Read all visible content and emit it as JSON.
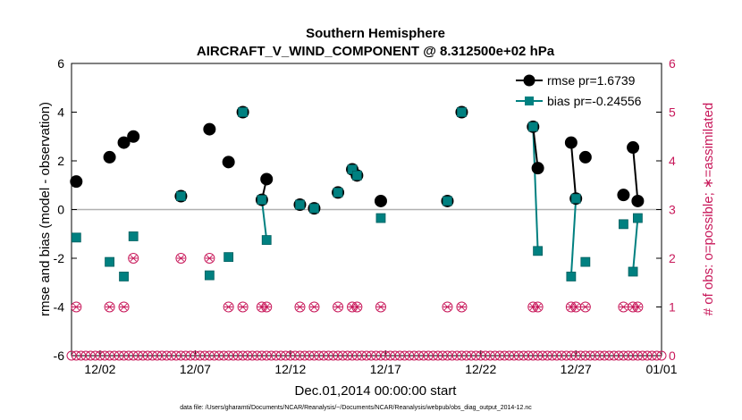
{
  "chart_data": {
    "type": "line",
    "title_line1": "Southern Hemisphere",
    "title_line2": "AIRCRAFT_V_WIND_COMPONENT @ 8.312500e+02 hPa",
    "xlabel": "Dec.01,2014 00:00:00 start",
    "ylabel": "rmse and bias (model - observation)",
    "y2label": "# of obs: o=possible; ∗=assimilated",
    "footnote": "data file: /Users/gharamti/Documents/NCAR/Reanalysis/~/Documents/NCAR/Reanalysis/webpub/obs_diag_output_2014-12.nc",
    "xlim": [
      0.0,
      31.0
    ],
    "ylim": [
      -6,
      6
    ],
    "y2lim": [
      0,
      6
    ],
    "xticks": [
      {
        "x": 1.5,
        "label": "12/02"
      },
      {
        "x": 6.5,
        "label": "12/07"
      },
      {
        "x": 11.5,
        "label": "12/12"
      },
      {
        "x": 16.5,
        "label": "12/17"
      },
      {
        "x": 21.5,
        "label": "12/22"
      },
      {
        "x": 26.5,
        "label": "12/27"
      },
      {
        "x": 31.0,
        "label": "01/01"
      }
    ],
    "yticks": [
      "-6",
      "-4",
      "-2",
      "0",
      "2",
      "4",
      "6"
    ],
    "y2ticks": [
      "0",
      "1",
      "2",
      "3",
      "4",
      "5",
      "6"
    ],
    "legend": [
      {
        "name": "rmse pr=1.6739",
        "color": "#000000",
        "marker": "circle"
      },
      {
        "name": "bias pr=-0.24556",
        "color": "#008080",
        "marker": "square"
      }
    ],
    "colors": {
      "rmse": "#000000",
      "bias": "#008080",
      "obs": "#c8185a",
      "zero": "#b0b0b0"
    },
    "segments": [
      {
        "x": [
          0.25
        ],
        "rmse": [
          1.15
        ],
        "bias": [
          -1.15
        ]
      },
      {
        "x": [
          2.0
        ],
        "rmse": [
          2.15
        ],
        "bias": [
          -2.15
        ]
      },
      {
        "x": [
          2.75
        ],
        "rmse": [
          2.75
        ],
        "bias": [
          -2.75
        ]
      },
      {
        "x": [
          3.25
        ],
        "rmse": [
          3.0
        ],
        "bias": [
          -1.1
        ]
      },
      {
        "x": [
          5.75
        ],
        "rmse": [
          0.55
        ],
        "bias": [
          0.55
        ]
      },
      {
        "x": [
          7.25
        ],
        "rmse": [
          3.3
        ],
        "bias": [
          -2.7
        ]
      },
      {
        "x": [
          8.25
        ],
        "rmse": [
          1.95
        ],
        "bias": [
          -1.95
        ]
      },
      {
        "x": [
          9.0
        ],
        "rmse": [
          4.0
        ],
        "bias": [
          4.0
        ]
      },
      {
        "x": [
          10.0,
          10.25
        ],
        "rmse": [
          0.4,
          1.25
        ],
        "bias": [
          0.4,
          -1.25
        ]
      },
      {
        "x": [
          12.0
        ],
        "rmse": [
          0.2
        ],
        "bias": [
          0.2
        ]
      },
      {
        "x": [
          12.75
        ],
        "rmse": [
          0.05
        ],
        "bias": [
          0.05
        ]
      },
      {
        "x": [
          14.0
        ],
        "rmse": [
          0.7
        ],
        "bias": [
          0.7
        ]
      },
      {
        "x": [
          14.75
        ],
        "rmse": [
          1.65
        ],
        "bias": [
          1.65
        ]
      },
      {
        "x": [
          15.0
        ],
        "rmse": [
          1.4
        ],
        "bias": [
          1.4
        ]
      },
      {
        "x": [
          16.25
        ],
        "rmse": [
          0.35
        ],
        "bias": [
          -0.35
        ]
      },
      {
        "x": [
          19.75
        ],
        "rmse": [
          0.35
        ],
        "bias": [
          0.35
        ]
      },
      {
        "x": [
          20.5
        ],
        "rmse": [
          4.0
        ],
        "bias": [
          4.0
        ]
      },
      {
        "x": [
          24.25,
          24.5
        ],
        "rmse": [
          3.4,
          1.7
        ],
        "bias": [
          3.4,
          -1.7
        ]
      },
      {
        "x": [
          26.25,
          26.5
        ],
        "rmse": [
          2.75,
          0.45
        ],
        "bias": [
          -2.75,
          0.45
        ]
      },
      {
        "x": [
          27.0
        ],
        "rmse": [
          2.15
        ],
        "bias": [
          -2.15
        ]
      },
      {
        "x": [
          29.0
        ],
        "rmse": [
          0.6
        ],
        "bias": [
          -0.6
        ]
      },
      {
        "x": [
          29.5,
          29.75
        ],
        "rmse": [
          2.55,
          0.35
        ],
        "bias": [
          -2.55,
          -0.35
        ]
      }
    ],
    "obs_counts": [
      {
        "x": 0.25,
        "n": 1
      },
      {
        "x": 2.0,
        "n": 1
      },
      {
        "x": 2.75,
        "n": 1
      },
      {
        "x": 3.25,
        "n": 2
      },
      {
        "x": 5.75,
        "n": 2
      },
      {
        "x": 7.25,
        "n": 2
      },
      {
        "x": 8.25,
        "n": 1
      },
      {
        "x": 9.0,
        "n": 1
      },
      {
        "x": 10.0,
        "n": 1
      },
      {
        "x": 10.25,
        "n": 1
      },
      {
        "x": 12.0,
        "n": 1
      },
      {
        "x": 12.75,
        "n": 1
      },
      {
        "x": 14.0,
        "n": 1
      },
      {
        "x": 14.75,
        "n": 1
      },
      {
        "x": 15.0,
        "n": 1
      },
      {
        "x": 16.25,
        "n": 1
      },
      {
        "x": 19.75,
        "n": 1
      },
      {
        "x": 20.5,
        "n": 1
      },
      {
        "x": 24.25,
        "n": 1
      },
      {
        "x": 24.5,
        "n": 1
      },
      {
        "x": 26.25,
        "n": 1
      },
      {
        "x": 26.5,
        "n": 1
      },
      {
        "x": 27.0,
        "n": 1
      },
      {
        "x": 29.0,
        "n": 1
      },
      {
        "x": 29.5,
        "n": 1
      },
      {
        "x": 29.75,
        "n": 1
      }
    ]
  }
}
